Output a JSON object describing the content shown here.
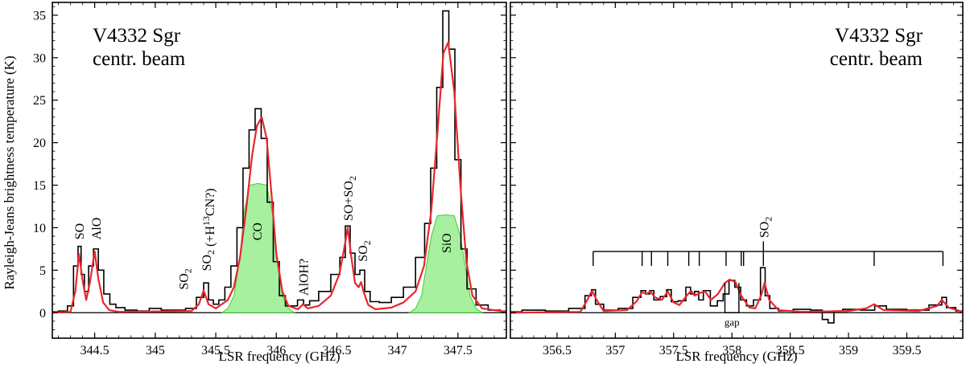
{
  "figure": {
    "ylabel": "Rayleigh-Jeans brightness temperature (K)"
  },
  "chart_data": [
    {
      "type": "line",
      "xlabel": "LSR frequency (GHz)",
      "ylabel": "Rayleigh-Jeans brightness temperature (K)",
      "xlim": [
        344.15,
        347.9
      ],
      "ylim": [
        -3,
        36.5
      ],
      "xticks": [
        344.5,
        345,
        345.5,
        346,
        346.5,
        347,
        347.5
      ],
      "yticks": [
        0,
        5,
        10,
        15,
        20,
        25,
        30,
        35
      ],
      "annotation_title": [
        "V4332 Sgr",
        "centr. beam"
      ],
      "series": [
        {
          "role": "observed",
          "color": "#000000",
          "style": "step",
          "x": [
            344.15,
            344.25,
            344.3,
            344.35,
            344.375,
            344.4,
            344.43,
            344.47,
            344.51,
            344.55,
            344.6,
            344.65,
            344.7,
            344.8,
            344.9,
            345.0,
            345.1,
            345.2,
            345.3,
            345.38,
            345.42,
            345.46,
            345.5,
            345.55,
            345.6,
            345.65,
            345.7,
            345.75,
            345.8,
            345.85,
            345.9,
            345.95,
            346.0,
            346.05,
            346.1,
            346.15,
            346.2,
            346.25,
            346.3,
            346.4,
            346.5,
            346.55,
            346.59,
            346.63,
            346.67,
            346.71,
            346.75,
            346.8,
            346.9,
            347.0,
            347.1,
            347.2,
            347.25,
            347.3,
            347.35,
            347.4,
            347.45,
            347.5,
            347.55,
            347.6,
            347.7,
            347.8,
            347.9
          ],
          "y": [
            0.1,
            0.2,
            0.8,
            5.5,
            7.8,
            4.5,
            2.5,
            5.5,
            7.5,
            5.0,
            2.2,
            1.0,
            0.6,
            0.3,
            0.2,
            0.5,
            0.3,
            0.3,
            0.5,
            1.8,
            3.5,
            1.5,
            1.0,
            1.5,
            3.0,
            5.5,
            10.0,
            17.0,
            21.5,
            24.0,
            20.5,
            13.0,
            6.0,
            2.0,
            0.8,
            0.8,
            1.5,
            0.9,
            1.4,
            2.5,
            4.5,
            6.5,
            10.2,
            7.0,
            4.5,
            5.0,
            2.5,
            1.3,
            1.2,
            1.8,
            3.0,
            6.5,
            10.5,
            17.0,
            26.5,
            35.5,
            31.0,
            18.0,
            7.5,
            2.8,
            0.9,
            0.3,
            0.2
          ]
        },
        {
          "role": "model",
          "color": "#e8262d",
          "style": "line",
          "x": [
            344.15,
            344.3,
            344.34,
            344.37,
            344.4,
            344.43,
            344.46,
            344.5,
            344.53,
            344.57,
            344.62,
            344.7,
            345.3,
            345.36,
            345.4,
            345.44,
            345.5,
            345.6,
            345.65,
            345.7,
            345.75,
            345.8,
            345.84,
            345.88,
            345.92,
            345.96,
            346.0,
            346.05,
            346.1,
            346.18,
            346.22,
            346.26,
            346.35,
            346.45,
            346.52,
            346.56,
            346.59,
            346.62,
            346.65,
            346.68,
            346.7,
            346.72,
            346.76,
            346.82,
            346.95,
            347.05,
            347.15,
            347.22,
            347.28,
            347.33,
            347.38,
            347.42,
            347.47,
            347.52,
            347.57,
            347.62,
            347.7,
            347.9
          ],
          "y": [
            0,
            0.1,
            2.5,
            6.9,
            3.8,
            1.5,
            3.5,
            7.2,
            4.0,
            1.2,
            0.3,
            0.1,
            0.2,
            1.0,
            2.6,
            1.0,
            0.5,
            1.5,
            3.0,
            6.5,
            12.0,
            18.5,
            22.0,
            23.0,
            20.5,
            14.0,
            7.0,
            2.5,
            0.8,
            0.4,
            1.0,
            0.5,
            0.8,
            2.0,
            4.5,
            7.5,
            10.0,
            6.5,
            3.5,
            3.0,
            3.6,
            2.5,
            0.9,
            0.4,
            0.6,
            1.2,
            2.5,
            5.5,
            12.0,
            21.0,
            30.5,
            31.8,
            26.0,
            15.0,
            6.0,
            2.0,
            0.5,
            0.1
          ]
        },
        {
          "role": "component",
          "color": "#3fcf2f",
          "fill": "#a6f0a0",
          "style": "area",
          "x": [
            345.55,
            345.6,
            345.65,
            345.7,
            345.73,
            345.78,
            345.85,
            345.92,
            345.97,
            346.0,
            346.05,
            346.1,
            346.15
          ],
          "y": [
            0,
            0.5,
            2.0,
            6.5,
            11.5,
            15.0,
            15.2,
            15.0,
            11.5,
            6.5,
            2.0,
            0.5,
            0
          ]
        },
        {
          "role": "component",
          "color": "#3fcf2f",
          "fill": "#a6f0a0",
          "style": "area",
          "x": [
            347.1,
            347.15,
            347.2,
            347.24,
            347.28,
            347.33,
            347.4,
            347.47,
            347.52,
            347.56,
            347.6,
            347.65,
            347.7
          ],
          "y": [
            0,
            0.5,
            2.0,
            5.5,
            9.0,
            11.4,
            11.5,
            11.4,
            9.0,
            5.5,
            2.0,
            0.5,
            0
          ]
        }
      ],
      "line_labels": [
        {
          "text": "SO",
          "x": 344.37,
          "y": 8.6,
          "rotate": true
        },
        {
          "text": "AlO",
          "x": 344.51,
          "y": 8.6,
          "rotate": true
        },
        {
          "text": "SO",
          "sub": "2",
          "x": 345.23,
          "y": 2.7,
          "rotate": true
        },
        {
          "text": "SO",
          "sub": "2",
          "rest": " (+H",
          "sup": "13",
          "rest2": "CN?)",
          "x": 345.42,
          "y": 4.9,
          "rotate": true
        },
        {
          "text": "CO",
          "x": 345.84,
          "y": 8.5,
          "rotate": true
        },
        {
          "text": "AlOH?",
          "x": 346.22,
          "y": 2.0,
          "rotate": true
        },
        {
          "text": "SO+SO",
          "sub": "2",
          "x": 346.59,
          "y": 10.8,
          "rotate": true
        },
        {
          "text": "SO",
          "sub": "2",
          "x": 346.71,
          "y": 6.0,
          "rotate": true
        },
        {
          "text": "SiO",
          "x": 347.4,
          "y": 7.0,
          "rotate": true
        }
      ]
    },
    {
      "type": "line",
      "xlabel": "LSR frequency (GHz)",
      "ylabel": "",
      "xlim": [
        356.1,
        359.98
      ],
      "ylim": [
        -3,
        36.5
      ],
      "xticks": [
        356.5,
        357,
        357.5,
        358,
        358.5,
        359,
        359.5
      ],
      "yticks": [
        0,
        5,
        10,
        15,
        20,
        25,
        30,
        35
      ],
      "annotation_title": [
        "V4332 Sgr",
        "centr. beam"
      ],
      "series": [
        {
          "role": "observed",
          "color": "#000000",
          "style": "step",
          "x": [
            356.1,
            356.3,
            356.5,
            356.7,
            356.78,
            356.81,
            356.85,
            356.95,
            357.1,
            357.2,
            357.24,
            357.28,
            357.31,
            357.35,
            357.42,
            357.46,
            357.5,
            357.58,
            357.63,
            357.66,
            357.7,
            357.73,
            357.78,
            357.85,
            357.9,
            357.95,
            358.0,
            358.05,
            358.1,
            358.15,
            358.22,
            358.27,
            358.3,
            358.35,
            358.45,
            358.6,
            358.75,
            358.8,
            358.85,
            358.9,
            359.0,
            359.2,
            359.25,
            359.4,
            359.6,
            359.78,
            359.82,
            359.86,
            359.98
          ],
          "y": [
            0.1,
            0.3,
            0.2,
            0.5,
            2.0,
            2.7,
            1.0,
            0.3,
            0.5,
            1.8,
            2.6,
            2.2,
            2.6,
            1.5,
            1.9,
            2.7,
            1.3,
            1.4,
            3.0,
            2.2,
            2.5,
            1.5,
            2.6,
            0.8,
            1.4,
            2.2,
            3.8,
            3.0,
            1.5,
            0.8,
            1.5,
            5.3,
            2.0,
            0.5,
            0.2,
            0.4,
            0.3,
            -0.8,
            -1.2,
            0.2,
            0.4,
            0.3,
            0.8,
            0.4,
            0.3,
            0.9,
            1.8,
            0.6,
            0.2
          ]
        },
        {
          "role": "model",
          "color": "#e8262d",
          "style": "line",
          "x": [
            356.1,
            356.7,
            356.76,
            356.8,
            356.84,
            356.9,
            357.1,
            357.18,
            357.23,
            357.27,
            357.3,
            357.34,
            357.4,
            357.45,
            357.5,
            357.55,
            357.6,
            357.65,
            357.68,
            357.72,
            357.77,
            357.82,
            357.88,
            357.94,
            357.98,
            358.03,
            358.08,
            358.15,
            358.2,
            358.25,
            358.28,
            358.32,
            358.4,
            358.6,
            359.0,
            359.15,
            359.22,
            359.3,
            359.6,
            359.76,
            359.8,
            359.86,
            359.98
          ],
          "y": [
            0,
            0.1,
            1.5,
            2.6,
            1.5,
            0.2,
            0.3,
            1.3,
            2.4,
            2.2,
            2.5,
            1.8,
            1.5,
            2.5,
            1.2,
            0.9,
            1.8,
            2.6,
            2.0,
            2.3,
            2.5,
            1.5,
            2.2,
            3.5,
            3.9,
            3.6,
            2.0,
            0.6,
            0.5,
            2.0,
            3.5,
            1.5,
            0.3,
            0.1,
            0.2,
            0.5,
            1.0,
            0.3,
            0.2,
            0.8,
            1.5,
            0.6,
            0.1
          ]
        }
      ],
      "line_labels": [
        {
          "text": "SO",
          "sub": "2",
          "x": 358.27,
          "y": 8.8,
          "rotate": true
        }
      ],
      "ticks_comb": {
        "y_bar": 7.2,
        "y_bottom": 5.5,
        "stem_y": 8.4,
        "x": [
          356.81,
          357.23,
          357.31,
          357.45,
          357.63,
          357.72,
          357.95,
          358.08,
          358.1,
          358.27,
          359.22,
          359.81
        ]
      },
      "gap": {
        "label": "gap",
        "x0": 357.94,
        "x1": 358.06,
        "y_top": 3.5,
        "y_bottom": 0
      }
    }
  ]
}
